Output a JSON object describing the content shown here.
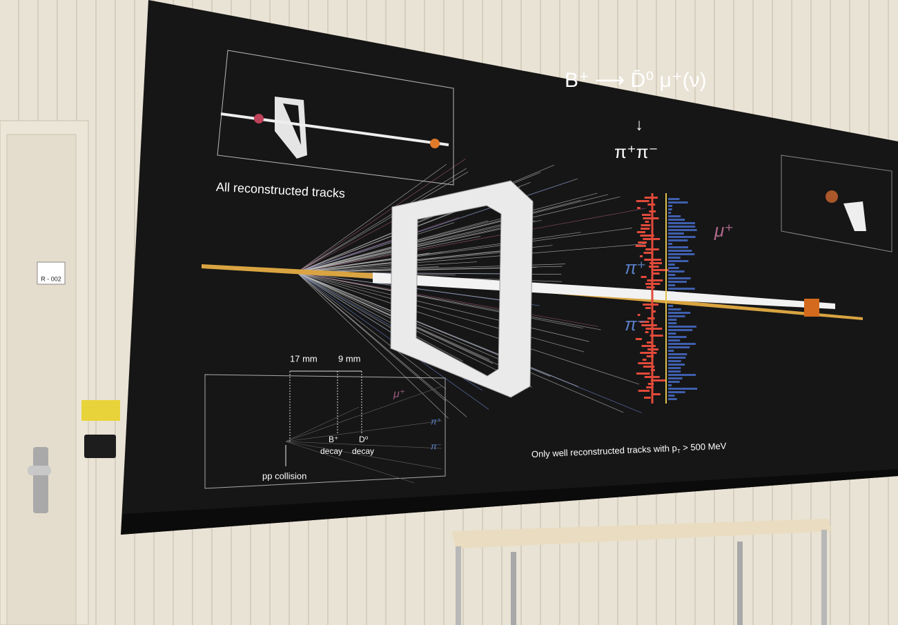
{
  "poster": {
    "decay": {
      "formula": "B⁺ ⟶ D̄⁰ μ⁺(ν)",
      "sub_arrow": "↓",
      "sub_products": "π⁺π⁻"
    },
    "inset_top_caption": "All reconstructed tracks",
    "main_labels": {
      "muon": "μ⁺",
      "pion_plus": "π⁺",
      "pion_minus": "π⁻"
    },
    "inset_bottom": {
      "distances": [
        "17 mm",
        "9 mm"
      ],
      "vertices": [
        {
          "particle": "B⁺",
          "label": "decay"
        },
        {
          "particle": "D⁰",
          "label": "decay"
        }
      ],
      "origin": "pp collision",
      "labels": {
        "muon": "μ⁺",
        "pion_plus": "π⁺",
        "pion_minus": "π⁻"
      }
    },
    "caption": {
      "main": "Only well reconstructed tracks with p",
      "sub": "T",
      "end": " > 500 MeV"
    }
  },
  "door": {
    "sign": "R - 002"
  }
}
